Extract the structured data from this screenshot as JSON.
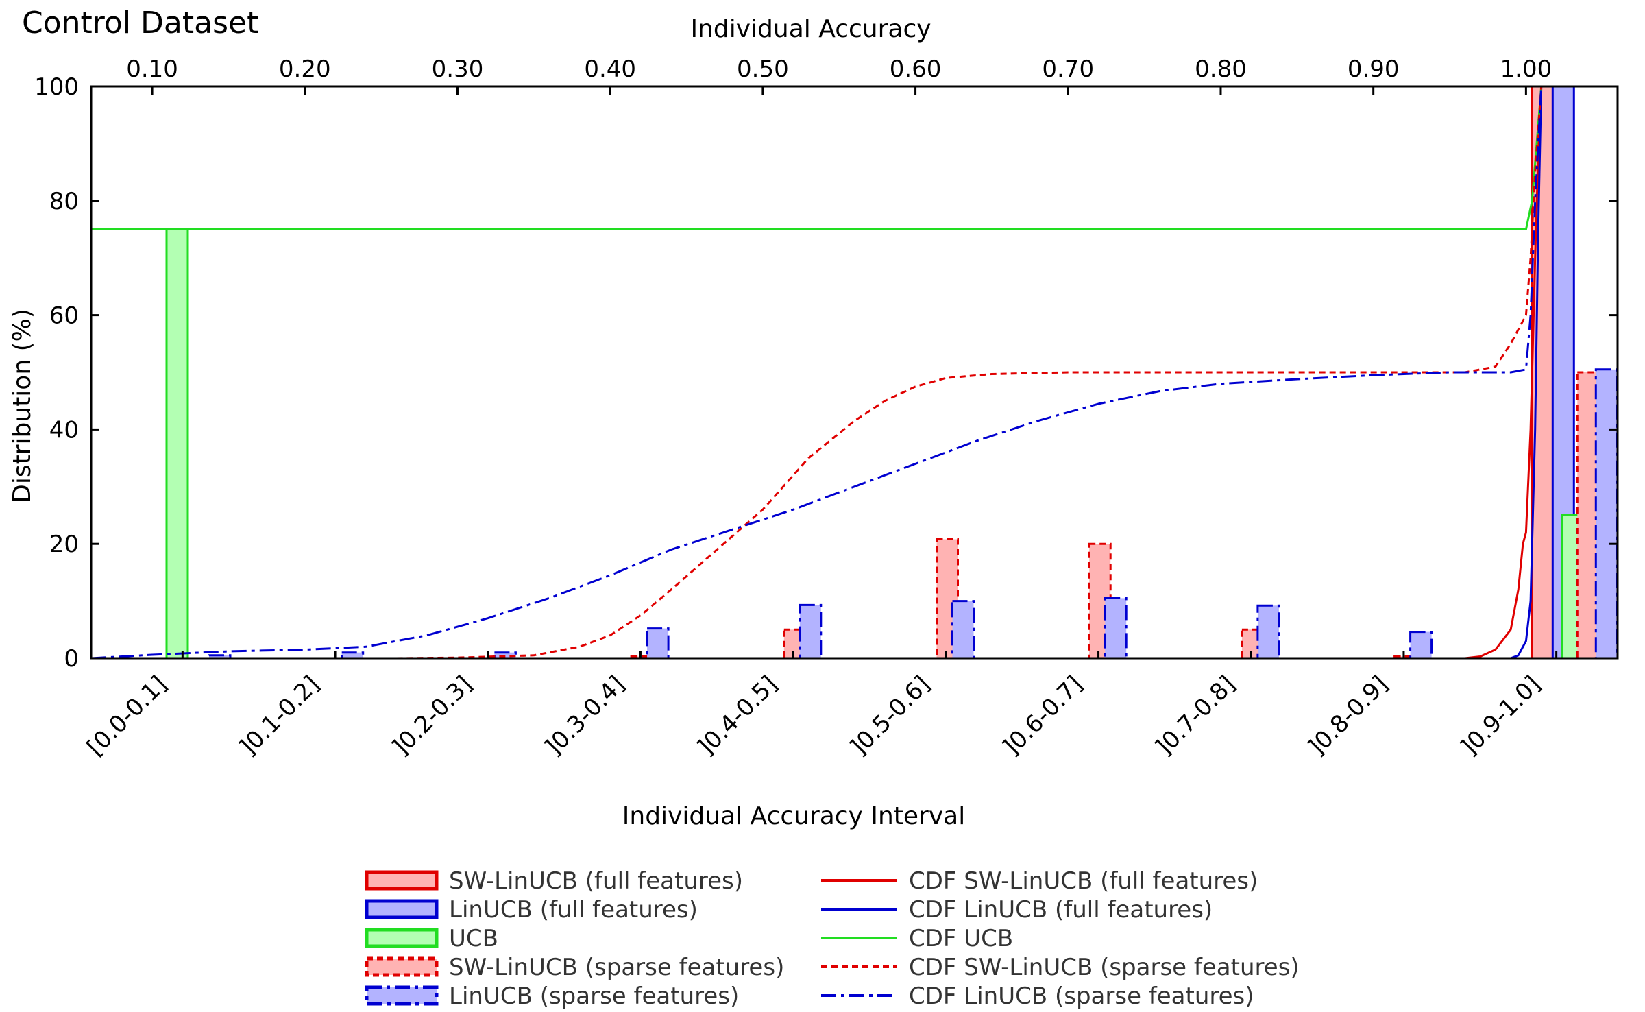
{
  "chart_data": {
    "type": "bar",
    "title": "Control Dataset",
    "xlabel": "Individual Accuracy Interval",
    "ylabel": "Distribution (%)",
    "x2label": "Individual Accuracy",
    "ylim": [
      0,
      100
    ],
    "yticks": [
      0,
      20,
      40,
      60,
      80,
      100
    ],
    "x2lim": [
      0.06,
      1.06
    ],
    "x2ticks": [
      "0.10",
      "0.20",
      "0.30",
      "0.40",
      "0.50",
      "0.60",
      "0.70",
      "0.80",
      "0.90",
      "1.00"
    ],
    "categories": [
      "[0.0-0.1]",
      "]0.1-0.2]",
      "]0.2-0.3]",
      "]0.3-0.4]",
      "]0.4-0.5]",
      "]0.5-0.6]",
      "]0.6-0.7]",
      "]0.7-0.8]",
      "]0.8-0.9]",
      "]0.9-1.0]"
    ],
    "grid": false,
    "legend_position": "bottom",
    "series": [
      {
        "name": "SW-LinUCB (full features)",
        "kind": "bar",
        "color": "#e00000",
        "fill": "#ffb3b3",
        "dash": "solid",
        "values": [
          0,
          0,
          0,
          0,
          0,
          0,
          0,
          0,
          0,
          100
        ]
      },
      {
        "name": "LinUCB (full features)",
        "kind": "bar",
        "color": "#0000d0",
        "fill": "#b3b3ff",
        "dash": "solid",
        "values": [
          0,
          0,
          0,
          0,
          0,
          0,
          0,
          0,
          0,
          100
        ]
      },
      {
        "name": "UCB",
        "kind": "bar",
        "color": "#22dd22",
        "fill": "#b3ffb3",
        "dash": "solid",
        "values": [
          75,
          0,
          0,
          0,
          0,
          0,
          0,
          0,
          0,
          25
        ]
      },
      {
        "name": "SW-LinUCB (sparse features)",
        "kind": "bar",
        "color": "#e00000",
        "fill": "#ffb3b3",
        "dash": "dotted",
        "values": [
          0,
          0,
          0,
          0.3,
          5,
          20.8,
          20,
          5,
          0.3,
          50
        ]
      },
      {
        "name": "LinUCB (sparse features)",
        "kind": "bar",
        "color": "#0000d0",
        "fill": "#b3b3ff",
        "dash": "dashdot",
        "values": [
          0.5,
          1,
          1,
          5.2,
          9.3,
          10,
          10.5,
          9.2,
          4.6,
          50.5
        ]
      },
      {
        "name": "CDF SW-LinUCB (full features)",
        "kind": "cdf",
        "color": "#e00000",
        "dash": "solid",
        "points": [
          [
            0.96,
            0
          ],
          [
            0.97,
            0.3
          ],
          [
            0.98,
            1.5
          ],
          [
            0.99,
            5
          ],
          [
            0.995,
            12
          ],
          [
            0.998,
            20
          ],
          [
            1.0,
            22
          ],
          [
            1.003,
            40
          ],
          [
            1.006,
            70
          ],
          [
            1.008,
            88
          ],
          [
            1.01,
            100
          ]
        ]
      },
      {
        "name": "CDF LinUCB (full features)",
        "kind": "cdf",
        "color": "#0000d0",
        "dash": "solid",
        "points": [
          [
            0.99,
            0
          ],
          [
            0.995,
            0.5
          ],
          [
            1.0,
            3
          ],
          [
            1.003,
            10
          ],
          [
            1.006,
            40
          ],
          [
            1.008,
            75
          ],
          [
            1.01,
            100
          ]
        ]
      },
      {
        "name": "CDF UCB",
        "kind": "cdf",
        "color": "#22dd22",
        "dash": "solid",
        "points": [
          [
            0.06,
            75
          ],
          [
            1.0,
            75
          ],
          [
            1.004,
            80
          ],
          [
            1.007,
            90
          ],
          [
            1.01,
            100
          ]
        ]
      },
      {
        "name": "CDF SW-LinUCB (sparse features)",
        "kind": "cdf",
        "color": "#e00000",
        "dash": "dotted",
        "points": [
          [
            0.26,
            0
          ],
          [
            0.3,
            0.1
          ],
          [
            0.35,
            0.5
          ],
          [
            0.38,
            2
          ],
          [
            0.4,
            4
          ],
          [
            0.42,
            7.5
          ],
          [
            0.44,
            12
          ],
          [
            0.47,
            19
          ],
          [
            0.5,
            26
          ],
          [
            0.53,
            35
          ],
          [
            0.56,
            41.5
          ],
          [
            0.58,
            45
          ],
          [
            0.6,
            47.5
          ],
          [
            0.62,
            49
          ],
          [
            0.65,
            49.7
          ],
          [
            0.7,
            50
          ],
          [
            0.8,
            50
          ],
          [
            0.9,
            50
          ],
          [
            0.96,
            50
          ],
          [
            0.98,
            51
          ],
          [
            0.99,
            55
          ],
          [
            1.0,
            60
          ],
          [
            1.003,
            70
          ],
          [
            1.006,
            85
          ],
          [
            1.01,
            100
          ]
        ]
      },
      {
        "name": "CDF LinUCB (sparse features)",
        "kind": "cdf",
        "color": "#0000d0",
        "dash": "dashdot",
        "points": [
          [
            0.06,
            0
          ],
          [
            0.1,
            0.6
          ],
          [
            0.15,
            1.2
          ],
          [
            0.2,
            1.5
          ],
          [
            0.24,
            2
          ],
          [
            0.28,
            4
          ],
          [
            0.32,
            7
          ],
          [
            0.36,
            10.5
          ],
          [
            0.4,
            14.5
          ],
          [
            0.44,
            19
          ],
          [
            0.48,
            22.5
          ],
          [
            0.52,
            26
          ],
          [
            0.56,
            30
          ],
          [
            0.6,
            34
          ],
          [
            0.64,
            38
          ],
          [
            0.68,
            41.5
          ],
          [
            0.72,
            44.5
          ],
          [
            0.76,
            46.7
          ],
          [
            0.8,
            48
          ],
          [
            0.85,
            48.8
          ],
          [
            0.9,
            49.5
          ],
          [
            0.95,
            50
          ],
          [
            0.99,
            50
          ],
          [
            1.0,
            50.5
          ],
          [
            1.003,
            60
          ],
          [
            1.006,
            80
          ],
          [
            1.01,
            100
          ]
        ]
      }
    ]
  }
}
